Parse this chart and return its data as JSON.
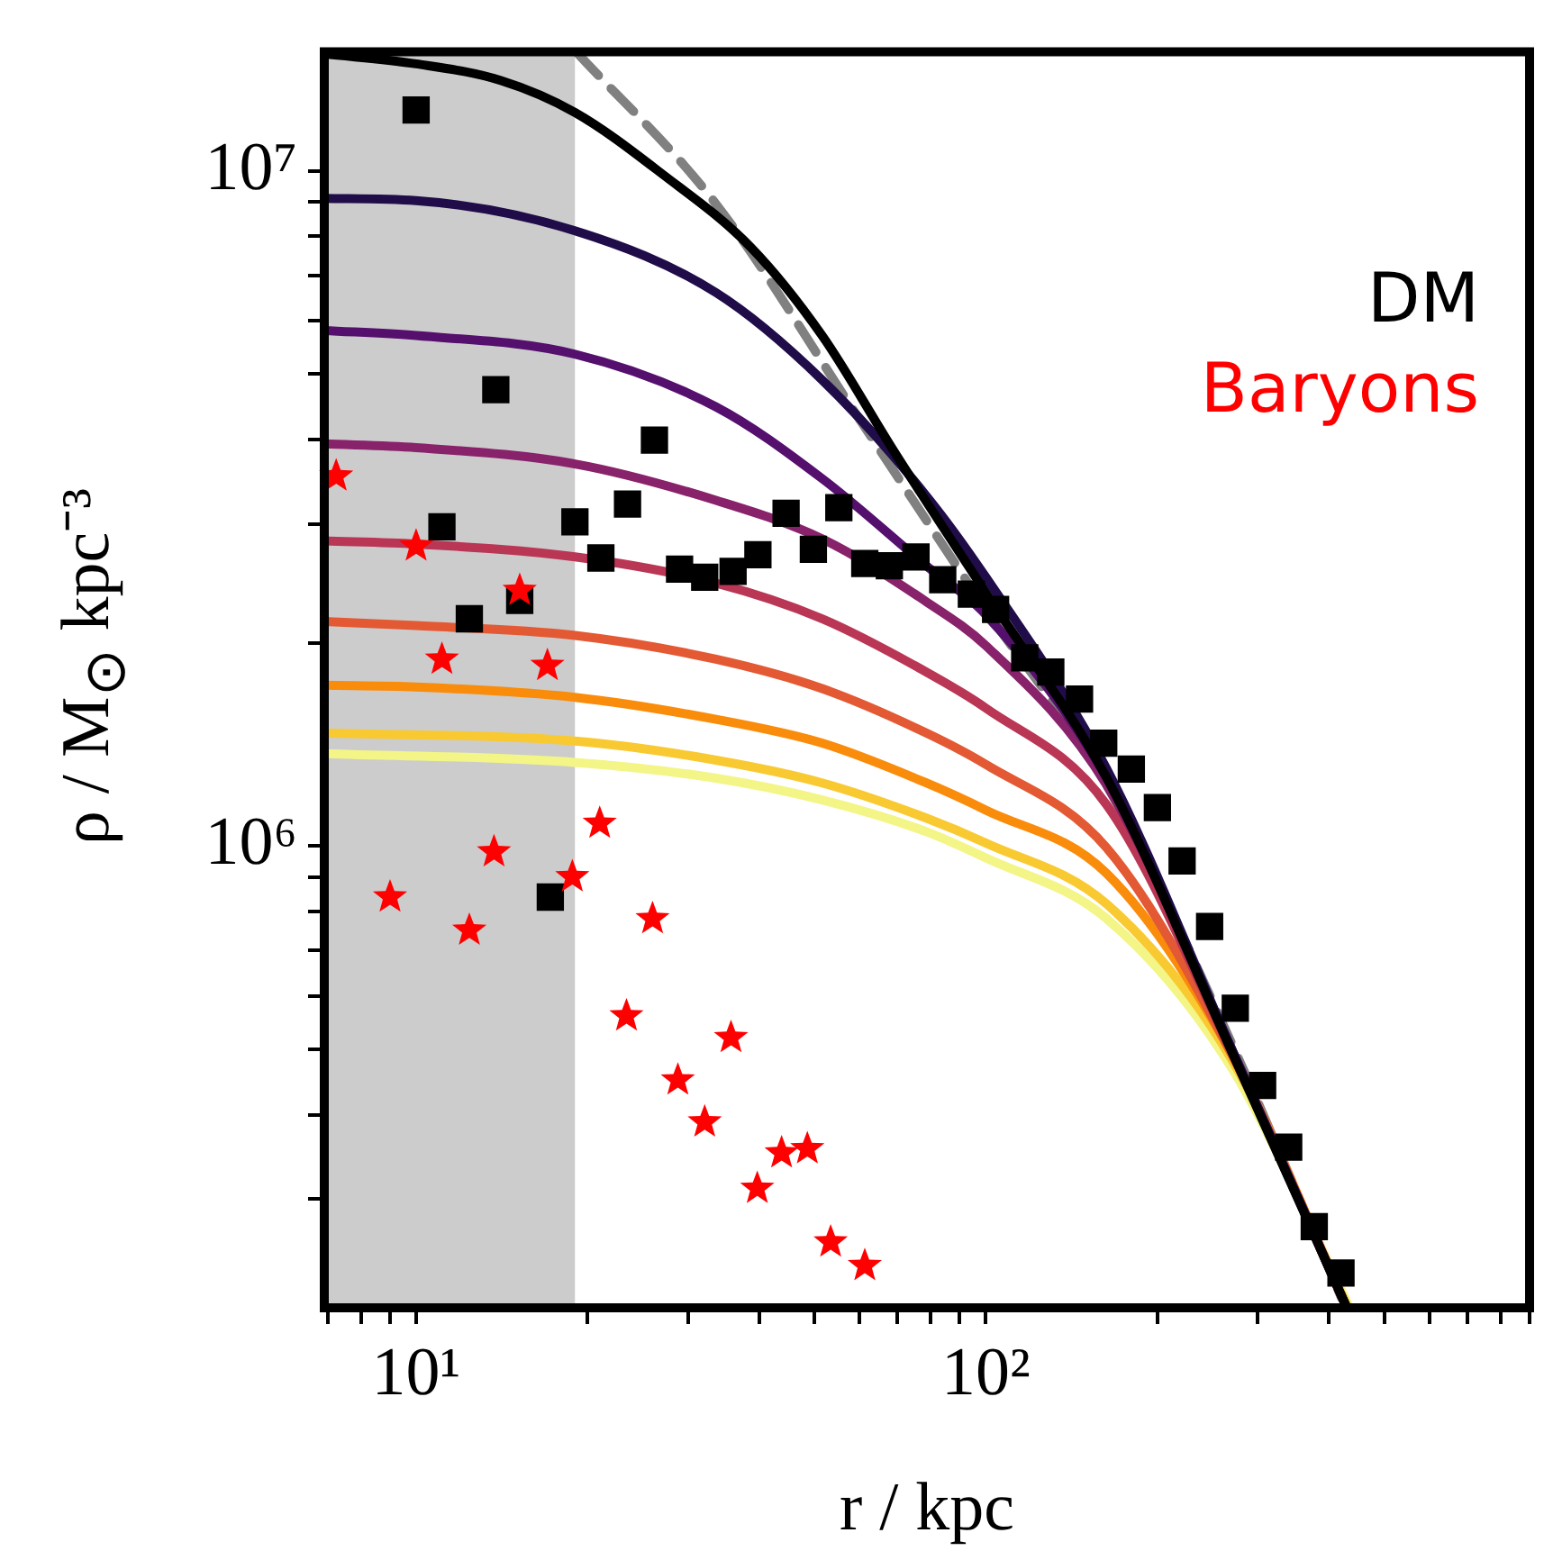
{
  "chart_data": {
    "type": "line",
    "xlabel": "r / kpc",
    "ylabel": "ρ / M$_{⊙}$ kpc⁻³",
    "log": "xy",
    "grid": false,
    "legend": "top right",
    "xlim": [
      6.9,
      900
    ],
    "ylim": [
      207000,
      15000000
    ],
    "xticks": [
      {
        "value": 7,
        "label": null
      },
      {
        "value": 8,
        "label": null
      },
      {
        "value": 9,
        "label": null
      },
      {
        "value": 10,
        "label": "10¹"
      },
      {
        "value": 20,
        "label": null
      },
      {
        "value": 30,
        "label": null
      },
      {
        "value": 40,
        "label": null
      },
      {
        "value": 50,
        "label": null
      },
      {
        "value": 60,
        "label": null
      },
      {
        "value": 70,
        "label": null
      },
      {
        "value": 80,
        "label": null
      },
      {
        "value": 90,
        "label": null
      },
      {
        "value": 100,
        "label": "10²"
      },
      {
        "value": 200,
        "label": null
      },
      {
        "value": 300,
        "label": null
      },
      {
        "value": 400,
        "label": null
      },
      {
        "value": 500,
        "label": null
      },
      {
        "value": 600,
        "label": null
      },
      {
        "value": 700,
        "label": null
      },
      {
        "value": 800,
        "label": null
      },
      {
        "value": 900,
        "label": null
      }
    ],
    "yticks": [
      {
        "value": 300000,
        "label": null
      },
      {
        "value": 400000,
        "label": null
      },
      {
        "value": 500000,
        "label": null
      },
      {
        "value": 600000,
        "label": null
      },
      {
        "value": 700000,
        "label": null
      },
      {
        "value": 800000,
        "label": null
      },
      {
        "value": 900000,
        "label": null
      },
      {
        "value": 1000000,
        "label": "10⁶"
      },
      {
        "value": 2000000,
        "label": null
      },
      {
        "value": 3000000,
        "label": null
      },
      {
        "value": 4000000,
        "label": null
      },
      {
        "value": 5000000,
        "label": null
      },
      {
        "value": 6000000,
        "label": null
      },
      {
        "value": 7000000,
        "label": null
      },
      {
        "value": 8000000,
        "label": null
      },
      {
        "value": 9000000,
        "label": null
      },
      {
        "value": 10000000,
        "label": "10⁷"
      }
    ],
    "bands": [
      {
        "axis": "x",
        "from": 6.9,
        "to": 19,
        "color": "#cccccc"
      }
    ],
    "series": [
      {
        "color": "#000000",
        "marker": "none",
        "x": [
          6.9,
          10,
          14.1,
          19,
          27,
          38.7,
          51.6,
          69,
          100,
          163,
          270,
          430
        ],
        "values": [
          14900000,
          14400000,
          13600000,
          12200000,
          9900000,
          7700000,
          5700000,
          3840000,
          2370000,
          1260000,
          496000,
          207000
        ]
      },
      {
        "color": "#1f0c48",
        "marker": "none",
        "x": [
          6.9,
          10,
          19,
          33.6,
          51.6,
          78.6,
          100,
          163,
          270,
          430
        ],
        "values": [
          9100000,
          9030000,
          8150000,
          6600000,
          4900000,
          3300000,
          2500000,
          1300000,
          500000,
          207000
        ]
      },
      {
        "color": "#550f6d",
        "marker": "none",
        "x": [
          6.9,
          10,
          19,
          33.6,
          51.6,
          78.6,
          100,
          163,
          270,
          430
        ],
        "values": [
          5800000,
          5700000,
          5350000,
          4470000,
          3500000,
          2600000,
          2200000,
          1260000,
          500000,
          207000
        ]
      },
      {
        "color": "#88226a",
        "marker": "none",
        "x": [
          6.9,
          10,
          19,
          33.6,
          51.6,
          78.6,
          100,
          163,
          270,
          430
        ],
        "values": [
          3940000,
          3890000,
          3680000,
          3250000,
          2850000,
          2300000,
          1980000,
          1230000,
          500000,
          207000
        ]
      },
      {
        "color": "#ba3655",
        "marker": "none",
        "x": [
          6.9,
          10,
          19,
          33.6,
          51.6,
          78.6,
          100,
          163,
          270,
          430
        ],
        "values": [
          2830000,
          2800000,
          2680000,
          2450000,
          2170000,
          1810000,
          1600000,
          1150000,
          496000,
          207000
        ]
      },
      {
        "color": "#e35933",
        "marker": "none",
        "x": [
          6.9,
          10,
          19,
          33.6,
          51.6,
          78.6,
          100,
          163,
          270,
          430
        ],
        "values": [
          2150000,
          2120000,
          2050000,
          1890000,
          1710000,
          1470000,
          1320000,
          993000,
          492000,
          207000
        ]
      },
      {
        "color": "#f98c0a",
        "marker": "none",
        "x": [
          6.9,
          10,
          19,
          33.6,
          51.6,
          78.6,
          100,
          163,
          270,
          430
        ],
        "values": [
          1730000,
          1720000,
          1660000,
          1540000,
          1420000,
          1240000,
          1130000,
          910000,
          492000,
          207000
        ]
      },
      {
        "color": "#f9c932",
        "marker": "none",
        "x": [
          6.9,
          19,
          33.6,
          51.6,
          78.6,
          100,
          163,
          270,
          432
        ],
        "values": [
          1470000,
          1430000,
          1340000,
          1240000,
          1100000,
          1010000,
          820000,
          483000,
          207000
        ]
      },
      {
        "color": "#f3f586",
        "marker": "none",
        "x": [
          6.9,
          19,
          33.6,
          51.6,
          78.6,
          100,
          163,
          270,
          435
        ],
        "values": [
          1370000,
          1330000,
          1260000,
          1170000,
          1050000,
          960000,
          780000,
          469000,
          207000
        ]
      },
      {
        "color": "#808080",
        "marker": "none",
        "line_style": "dashed",
        "x": [
          19.1,
          33.6,
          59.4,
          100,
          163,
          270,
          421
        ],
        "values": [
          15000000,
          8930000,
          4340000,
          2240000,
          1230000,
          510000,
          214000
        ]
      },
      {
        "type": "scatter",
        "name": "DM",
        "color": "#000000",
        "marker": "square",
        "x": [
          10,
          11.1,
          13.8,
          12.4,
          15.2,
          17.2,
          19,
          21.1,
          23.5,
          26.2,
          29,
          32.1,
          36,
          39.8,
          44.6,
          49.8,
          55.2,
          61.3,
          67.7,
          75.4,
          84,
          94.3,
          104,
          117,
          130,
          146,
          161,
          180,
          200,
          221,
          247,
          274,
          306,
          340,
          377,
          420
        ],
        "values": [
          12300000,
          2970000,
          4740000,
          2170000,
          2310000,
          840000,
          3020000,
          2670000,
          3210000,
          3990000,
          2570000,
          2500000,
          2550000,
          2700000,
          3110000,
          2750000,
          3170000,
          2620000,
          2600000,
          2680000,
          2480000,
          2360000,
          2240000,
          1900000,
          1810000,
          1650000,
          1420000,
          1300000,
          1140000,
          950000,
          760000,
          575000,
          442000,
          358000,
          273000,
          233000
        ]
      },
      {
        "type": "scatter",
        "name": "Baryons",
        "color": "#ff0000",
        "marker": "star",
        "x": [
          7.24,
          10,
          11.1,
          15.2,
          17,
          9,
          12.4,
          13.7,
          18.8,
          21,
          26,
          23.4,
          28.8,
          32.1,
          35.7,
          39.7,
          43.8,
          48.6,
          53.4,
          61.3
        ],
        "values": [
          3530000,
          2780000,
          1890000,
          2390000,
          1850000,
          840000,
          750000,
          980000,
          900000,
          1080000,
          780000,
          560000,
          450000,
          390000,
          520000,
          311000,
          351000,
          356000,
          259000,
          239000
        ]
      }
    ]
  }
}
